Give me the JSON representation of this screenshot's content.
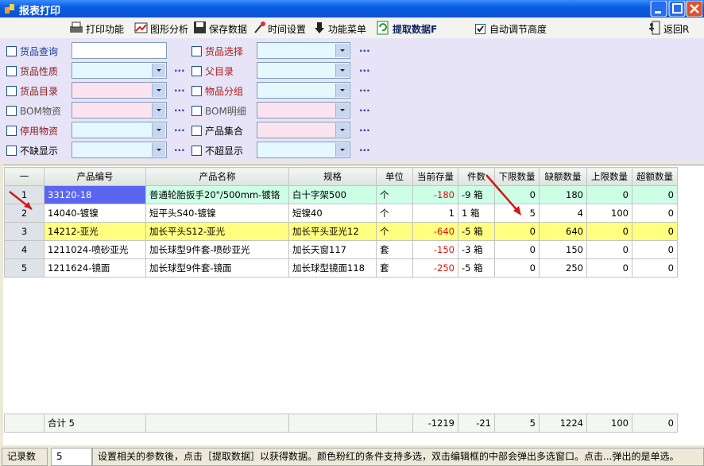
{
  "window": {
    "title": "报表打印"
  },
  "toolbar": {
    "items": [
      "打印功能",
      "图形分析",
      "保存数据",
      "时间设置",
      "功能菜单",
      "提取数据F"
    ],
    "auto_height": "自动调节高度",
    "auto_height_checked": true,
    "back": "返回R"
  },
  "filters": {
    "more": "...",
    "left": [
      {
        "label": "货品查询",
        "color": "#1a3c9c",
        "input": "text"
      },
      {
        "label": "货品性质",
        "color": "#8b1a1a",
        "input": "combo",
        "multi": false
      },
      {
        "label": "货品目录",
        "color": "#8b1a1a",
        "input": "combo",
        "multi": true
      },
      {
        "label": "BOM物资",
        "color": "#555555",
        "input": "combo",
        "multi": true
      },
      {
        "label": "停用物资",
        "color": "#8b1a1a",
        "input": "combo",
        "multi": false
      },
      {
        "label": "不缺显示",
        "color": "#000000",
        "input": "combo",
        "multi": false
      }
    ],
    "right": [
      {
        "label": "货品选择",
        "color": "#b01818",
        "input": "combo",
        "multi": false
      },
      {
        "label": "父目录",
        "color": "#b01818",
        "input": "combo",
        "multi": false
      },
      {
        "label": "物品分组",
        "color": "#b01818",
        "input": "combo",
        "multi": false
      },
      {
        "label": "BOM明细",
        "color": "#555555",
        "input": "combo",
        "multi": true
      },
      {
        "label": "产品集合",
        "color": "#000000",
        "input": "combo",
        "multi": true
      },
      {
        "label": "不超显示",
        "color": "#000000",
        "input": "combo",
        "multi": false
      }
    ]
  },
  "table": {
    "columns": [
      "一",
      "产品编号",
      "产品名称",
      "规格",
      "单位",
      "当前存量",
      "件数",
      "下限数量",
      "缺额数量",
      "上限数量",
      "超额数量"
    ],
    "rows": [
      [
        1,
        "33120-18",
        "普通轮胎扳手20\"/500mm-镀铬",
        "白十字架500",
        "个",
        -180,
        "-9 箱",
        0,
        180,
        0,
        0
      ],
      [
        2,
        "14040-镀镍",
        "短平头S40-镀镍",
        "短镍40",
        "个",
        1,
        "1 箱",
        5,
        4,
        100,
        0
      ],
      [
        3,
        "14212-亚光",
        "加长平头S12-亚光",
        "加长平头亚光12",
        "个",
        -640,
        "-5 箱",
        0,
        640,
        0,
        0
      ],
      [
        4,
        "1211024-喷砂亚光",
        "加长球型9件套-喷砂亚光",
        "加长天窗117",
        "套",
        -150,
        "-3 箱",
        0,
        150,
        0,
        0
      ],
      [
        5,
        "1211624-镜面",
        "加长球型9件套-镜面",
        "加长球型镜面118",
        "套",
        -250,
        "-5 箱",
        0,
        250,
        0,
        0
      ]
    ],
    "row_colors": [
      "#ccffe6",
      "#ffffff",
      "#ffff80",
      "#ffffff",
      "#ffffff"
    ],
    "total": [
      null,
      "合计 5",
      null,
      null,
      null,
      -1219,
      -21,
      5,
      1224,
      100,
      0
    ]
  },
  "status": {
    "label": "记录数",
    "count": 5,
    "message": "设置相关的参数後，点击［提取数据］以获得数据。颜色粉红的条件支持多选，双击编辑框的中部会弹出多选窗口。点击...弹出的是单选。"
  }
}
